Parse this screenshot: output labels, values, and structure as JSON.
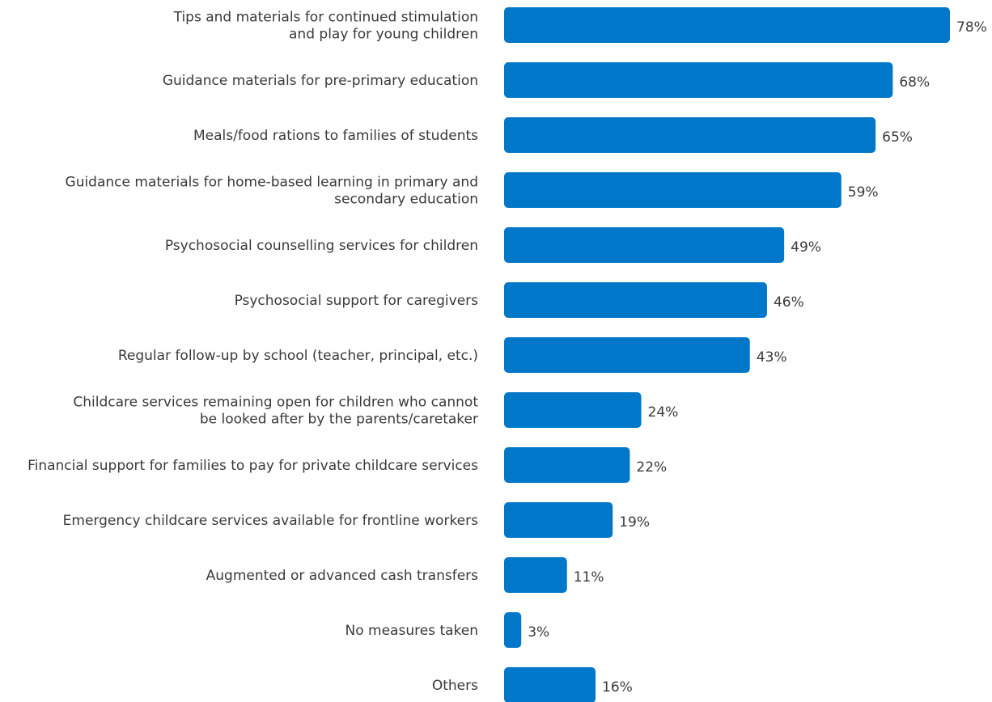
{
  "chart_data": {
    "type": "bar",
    "orientation": "horizontal",
    "title": "",
    "xlabel": "",
    "ylabel": "",
    "bar_color": "#0077c8",
    "value_suffix": "%",
    "xlim": [
      0,
      100
    ],
    "grid": false,
    "legend": "none",
    "categories": [
      "Tips and materials for continued stimulation and play for young children",
      "Guidance materials for pre-primary education",
      "Meals/food rations to families of students",
      "Guidance materials for home-based learning in primary and secondary education",
      "Psychosocial counselling services for children",
      "Psychosocial support for caregivers",
      "Regular follow-up by school (teacher, principal, etc.)",
      "Childcare services remaining open for children who cannot be looked after by the parents/caretaker",
      "Financial support for families to pay for private childcare services",
      "Emergency childcare services available for frontline workers",
      "Augmented or advanced cash transfers",
      "No measures taken",
      "Others"
    ],
    "category_lines": [
      [
        "Tips and materials for continued stimulation",
        "and play for young children"
      ],
      [
        "Guidance materials for pre-primary education"
      ],
      [
        "Meals/food rations to families of students"
      ],
      [
        "Guidance materials for home-based learning in primary and",
        "secondary education"
      ],
      [
        "Psychosocial counselling services for children"
      ],
      [
        "Psychosocial support for caregivers"
      ],
      [
        "Regular follow-up by school (teacher, principal, etc.)"
      ],
      [
        "Childcare services remaining open for children who cannot",
        "be looked after by the parents/caretaker"
      ],
      [
        "Financial support for families to pay for private childcare services"
      ],
      [
        "Emergency childcare services available for frontline workers"
      ],
      [
        "Augmented or advanced cash transfers"
      ],
      [
        "No measures taken"
      ],
      [
        "Others"
      ]
    ],
    "values": [
      78,
      68,
      65,
      59,
      49,
      46,
      43,
      24,
      22,
      19,
      11,
      3,
      16
    ],
    "value_labels": [
      "78%",
      "68%",
      "65%",
      "59%",
      "49%",
      "46%",
      "43%",
      "24%",
      "22%",
      "19%",
      "11%",
      "3%",
      "16%"
    ]
  }
}
